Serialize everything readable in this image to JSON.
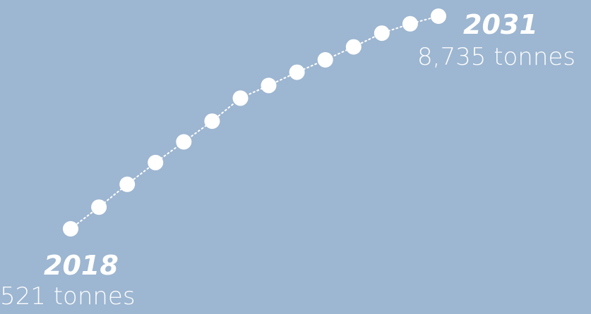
{
  "colors": {
    "background": "#9db6d1",
    "marker": "#ffffff",
    "line": "#ffffff"
  },
  "start": {
    "year": "2018",
    "value_text": "521 tonnes"
  },
  "end": {
    "year": "2031",
    "value_text": "8,735 tonnes"
  },
  "chart_data": {
    "type": "line",
    "x": [
      2018,
      2019,
      2020,
      2021,
      2022,
      2023,
      2024,
      2025,
      2026,
      2027,
      2028,
      2029,
      2030,
      2031
    ],
    "series": [
      {
        "values": [
          521,
          1360,
          2240,
          3080,
          3880,
          4680,
          5570,
          6060,
          6570,
          7050,
          7550,
          8080,
          8440,
          8735
        ]
      }
    ],
    "ylim": [
      521,
      8735
    ],
    "grid": false,
    "legend": "none",
    "line_style": "dotted"
  }
}
